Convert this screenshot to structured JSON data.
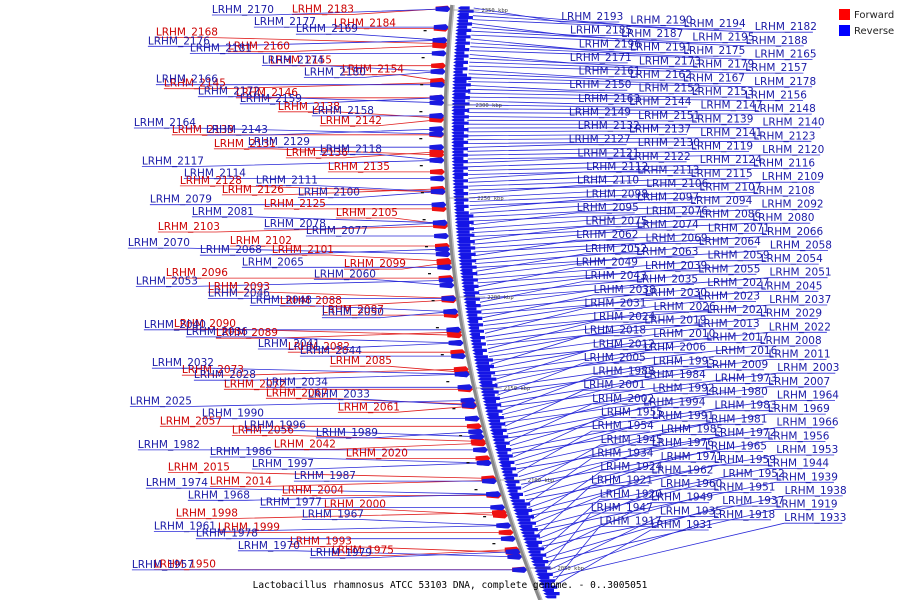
{
  "caption": "Lactobacillus rhamnosus ATCC 53103 DNA, complete genome. - 0..3005051",
  "legend": [
    {
      "label": "Forward",
      "color": "#ff0000"
    },
    {
      "label": "Reverse",
      "color": "#0000ff"
    }
  ],
  "backbone_ticks": [
    "2350 kbp",
    "2300 kbp",
    "2250 kbp",
    "2200 kbp",
    "2150 kbp",
    "2100 kbp",
    "2050 kbp"
  ],
  "left_forward": [
    "LRHM_2183",
    "LRHM_2184",
    "LRHM_2168",
    "LRHM_2160",
    "LRHM_2155",
    "LRHM_2154",
    "LRHM_2145",
    "LRHM_2146",
    "LRHM_2138",
    "LRHM_2142",
    "LRHM_2133",
    "LRHM_2131",
    "LRHM_2136",
    "LRHM_2135",
    "LRHM_2128",
    "LRHM_2126",
    "LRHM_2125",
    "LRHM_2105",
    "LRHM_2103",
    "LRHM_2102",
    "LRHM_2101",
    "LRHM_2099",
    "LRHM_2096",
    "LRHM_2093",
    "LRHM_2088",
    "LRHM_2087",
    "LRHM_2090",
    "LRHM_2089",
    "LRHM_2082",
    "LRHM_2085",
    "LRHM_2073",
    "LRHM_2072",
    "LRHM_2067",
    "LRHM_2061",
    "LRHM_2057",
    "LRHM_2056",
    "LRHM_2042",
    "LRHM_2020",
    "LRHM_2015",
    "LRHM_2014",
    "LRHM_2004",
    "LRHM_2000",
    "LRHM_1998",
    "LRHM_1999",
    "LRHM_1993",
    "LRHM_1975",
    "LRHM_1950"
  ],
  "left_reverse": [
    "LRHM_2170",
    "LRHM_2177",
    "LRHM_2169",
    "LRHM_2176",
    "LRHM_2181",
    "LRHM_2174",
    "LRHM_2180",
    "LRHM_2166",
    "LRHM_2172",
    "LRHM_2159",
    "LRHM_2158",
    "LRHM_2164",
    "LRHM_2143",
    "LRHM_2129",
    "LRHM_2118",
    "LRHM_2117",
    "LRHM_2114",
    "LRHM_2111",
    "LRHM_2100",
    "LRHM_2079",
    "LRHM_2081",
    "LRHM_2078",
    "LRHM_2077",
    "LRHM_2070",
    "LRHM_2068",
    "LRHM_2065",
    "LRHM_2060",
    "LRHM_2053",
    "LRHM_2046",
    "LRHM_2048",
    "LRHM_2050",
    "LRHM_2040",
    "LRHM_2036",
    "LRHM_2041",
    "LRHM_2044",
    "LRHM_2032",
    "LRHM_2028",
    "LRHM_2034",
    "LRHM_2033",
    "LRHM_2025",
    "LRHM_1990",
    "LRHM_1996",
    "LRHM_1989",
    "LRHM_1982",
    "LRHM_1986",
    "LRHM_1997",
    "LRHM_1987",
    "LRHM_1974",
    "LRHM_1968",
    "LRHM_1977",
    "LRHM_1967",
    "LRHM_1961",
    "LRHM_1978",
    "LRHM_1970",
    "LRHM_1979",
    "LRHM_1957"
  ],
  "right_reverse": [
    "LRHM_2193",
    "LRHM_2190",
    "LRHM_2194",
    "LRHM_2182",
    "LRHM_2185",
    "LRHM_2187",
    "LRHM_2195",
    "LRHM_2188",
    "LRHM_2196",
    "LRHM_2191",
    "LRHM_2175",
    "LRHM_2165",
    "LRHM_2171",
    "LRHM_2173",
    "LRHM_2179",
    "LRHM_2157",
    "LRHM_2161",
    "LRHM_2162",
    "LRHM_2167",
    "LRHM_2178",
    "LRHM_2150",
    "LRHM_2152",
    "LRHM_2153",
    "LRHM_2156",
    "LRHM_2163",
    "LRHM_2144",
    "LRHM_2147",
    "LRHM_2148",
    "LRHM_2149",
    "LRHM_2151",
    "LRHM_2139",
    "LRHM_2140",
    "LRHM_2132",
    "LRHM_2137",
    "LRHM_2141",
    "LRHM_2123",
    "LRHM_2127",
    "LRHM_2130",
    "LRHM_2119",
    "LRHM_2120",
    "LRHM_2121",
    "LRHM_2122",
    "LRHM_2124",
    "LRHM_2116",
    "LRHM_2112",
    "LRHM_2113",
    "LRHM_2115",
    "LRHM_2109",
    "LRHM_2110",
    "LRHM_2106",
    "LRHM_2107",
    "LRHM_2108",
    "LRHM_2098",
    "LRHM_2097",
    "LRHM_2094",
    "LRHM_2092",
    "LRHM_2095",
    "LRHM_2076",
    "LRHM_2086",
    "LRHM_2080",
    "LRHM_2075",
    "LRHM_2074",
    "LRHM_2071",
    "LRHM_2066",
    "LRHM_2062",
    "LRHM_2069",
    "LRHM_2064",
    "LRHM_2058",
    "LRHM_2052",
    "LRHM_2063",
    "LRHM_2059",
    "LRHM_2054",
    "LRHM_2049",
    "LRHM_2039",
    "LRHM_2055",
    "LRHM_2051",
    "LRHM_2043",
    "LRHM_2035",
    "LRHM_2027",
    "LRHM_2045",
    "LRHM_2038",
    "LRHM_2030",
    "LRHM_2023",
    "LRHM_2037",
    "LRHM_2031",
    "LRHM_2026",
    "LRHM_2021",
    "LRHM_2029",
    "LRHM_2024",
    "LRHM_2019",
    "LRHM_2013",
    "LRHM_2022",
    "LRHM_2018",
    "LRHM_2010",
    "LRHM_2017",
    "LRHM_2008",
    "LRHM_2012",
    "LRHM_2006",
    "LRHM_2016",
    "LRHM_2011",
    "LRHM_2005",
    "LRHM_1995",
    "LRHM_2009",
    "LRHM_2003",
    "LRHM_1988",
    "LRHM_1984",
    "LRHM_1973",
    "LRHM_2007",
    "LRHM_2001",
    "LRHM_1992",
    "LRHM_1980",
    "LRHM_1964",
    "LRHM_2002",
    "LRHM_1994",
    "LRHM_1983",
    "LRHM_1969",
    "LRHM_1955",
    "LRHM_1991",
    "LRHM_1981",
    "LRHM_1966",
    "LRHM_1954",
    "LRHM_1985",
    "LRHM_1972",
    "LRHM_1956",
    "LRHM_1945",
    "LRHM_1976",
    "LRHM_1965",
    "LRHM_1953",
    "LRHM_1934",
    "LRHM_1971",
    "LRHM_1959",
    "LRHM_1944",
    "LRHM_1924",
    "LRHM_1962",
    "LRHM_1952",
    "LRHM_1939",
    "LRHM_1921",
    "LRHM_1960",
    "LRHM_1951",
    "LRHM_1938",
    "LRHM_1920",
    "LRHM_1949",
    "LRHM_1937",
    "LRHM_1919",
    "LRHM_1947",
    "LRHM_1935",
    "LRHM_1918",
    "LRHM_1933",
    "LRHM_1917",
    "LRHM_1931"
  ]
}
